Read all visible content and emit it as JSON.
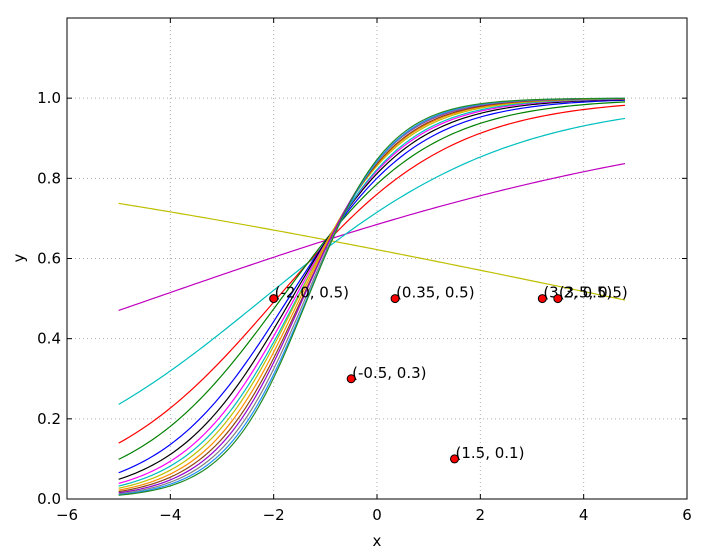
{
  "chart_data": {
    "type": "line",
    "xlabel": "x",
    "ylabel": "y",
    "xlim": [
      -6,
      6
    ],
    "ylim": [
      0,
      1.2
    ],
    "x_ticks": [
      -6,
      -4,
      -2,
      0,
      2,
      4,
      6
    ],
    "x_tick_labels": [
      "−6",
      "−4",
      "−2",
      "0",
      "2",
      "4",
      "6"
    ],
    "y_ticks": [
      0.0,
      0.2,
      0.4,
      0.6,
      0.8,
      1.0
    ],
    "y_tick_labels": [
      "0.0",
      "0.2",
      "0.4",
      "0.6",
      "0.8",
      "1.0"
    ],
    "grid": true,
    "x_range": [
      -5,
      4.8
    ],
    "series": [
      {
        "color": "#bfbf00",
        "values": [
          0.7375,
          0.4963
        ]
      },
      {
        "color": "#bf00bf",
        "values": [
          0.4704,
          0.8369
        ]
      },
      {
        "color": "#00bfbf",
        "values": [
          0.236,
          0.9495
        ]
      },
      {
        "color": "#ff0000",
        "values": [
          0.1393,
          0.9822
        ]
      },
      {
        "color": "#008000",
        "values": [
          0.0989,
          0.9907
        ]
      },
      {
        "color": "#0000ff",
        "values": [
          0.0655,
          0.9949
        ]
      },
      {
        "color": "#000000",
        "values": [
          0.0491,
          0.9967
        ]
      },
      {
        "color": "#ff00ff",
        "values": [
          0.0389,
          0.9976
        ]
      },
      {
        "color": "#00bfbf",
        "values": [
          0.0323,
          0.9981
        ]
      },
      {
        "color": "#bfbf00",
        "values": [
          0.0268,
          0.9986
        ]
      },
      {
        "color": "#ff8c00",
        "values": [
          0.022,
          0.9989
        ]
      },
      {
        "color": "#8b4513",
        "values": [
          0.0184,
          0.9991
        ]
      },
      {
        "color": "#9400d3",
        "values": [
          0.0154,
          0.9993
        ]
      },
      {
        "color": "#808080",
        "values": [
          0.013,
          0.9994
        ]
      },
      {
        "color": "#1e90ff",
        "values": [
          0.011,
          0.9995
        ]
      },
      {
        "color": "#228b22",
        "values": [
          0.0094,
          0.9996
        ]
      }
    ],
    "points": [
      {
        "x": -2.0,
        "y": 0.5,
        "label": "(-2.0, 0.5)"
      },
      {
        "x": 0.35,
        "y": 0.5,
        "label": "(0.35, 0.5)"
      },
      {
        "x": -0.5,
        "y": 0.3,
        "label": "(-0.5, 0.3)"
      },
      {
        "x": 1.5,
        "y": 0.1,
        "label": "(1.5, 0.1)"
      },
      {
        "x": 3.2,
        "y": 0.5,
        "label": "(3.2, 0.5)"
      },
      {
        "x": 3.5,
        "y": 0.5,
        "label": "(3.5, 0.5)"
      }
    ],
    "point_color": "#ff0000"
  }
}
